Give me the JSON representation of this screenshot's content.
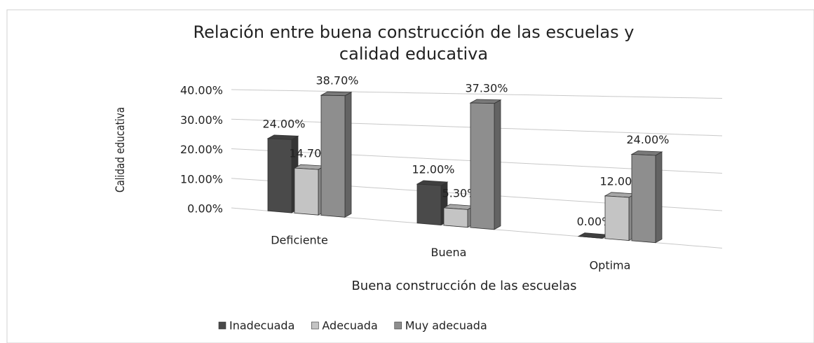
{
  "chart_data": {
    "type": "bar3d",
    "title": "Relación entre buena construcción de las escuelas y calidad educativa",
    "x_label": "Buena construcción de las escuelas",
    "y_label": "Calidad educativa",
    "categories": [
      "Deficiente",
      "Buena",
      "Optima"
    ],
    "series": [
      {
        "name": "Inadecuada",
        "color": "#4a4a4a",
        "values": [
          24,
          12,
          0
        ],
        "value_labels": [
          "24.00%",
          "12.00%",
          "0.00%"
        ]
      },
      {
        "name": "Adecuada",
        "color": "#c4c4c4",
        "values": [
          14.7,
          5.3,
          12
        ],
        "value_labels": [
          "14.70%",
          "5.30%",
          "12.00%"
        ]
      },
      {
        "name": "Muy adecuada",
        "color": "#8e8e8e",
        "values": [
          38.7,
          37.3,
          24
        ],
        "value_labels": [
          "38.70%",
          "37.30%",
          "24.00%"
        ]
      }
    ],
    "ylim": [
      0,
      40
    ],
    "yticks": [
      {
        "value": 0,
        "label": "0.00%"
      },
      {
        "value": 10,
        "label": "10.00%"
      },
      {
        "value": 20,
        "label": "20.00%"
      },
      {
        "value": 30,
        "label": "30.00%"
      },
      {
        "value": 40,
        "label": "40.00%"
      }
    ],
    "grid": true,
    "legend": "bottom"
  }
}
